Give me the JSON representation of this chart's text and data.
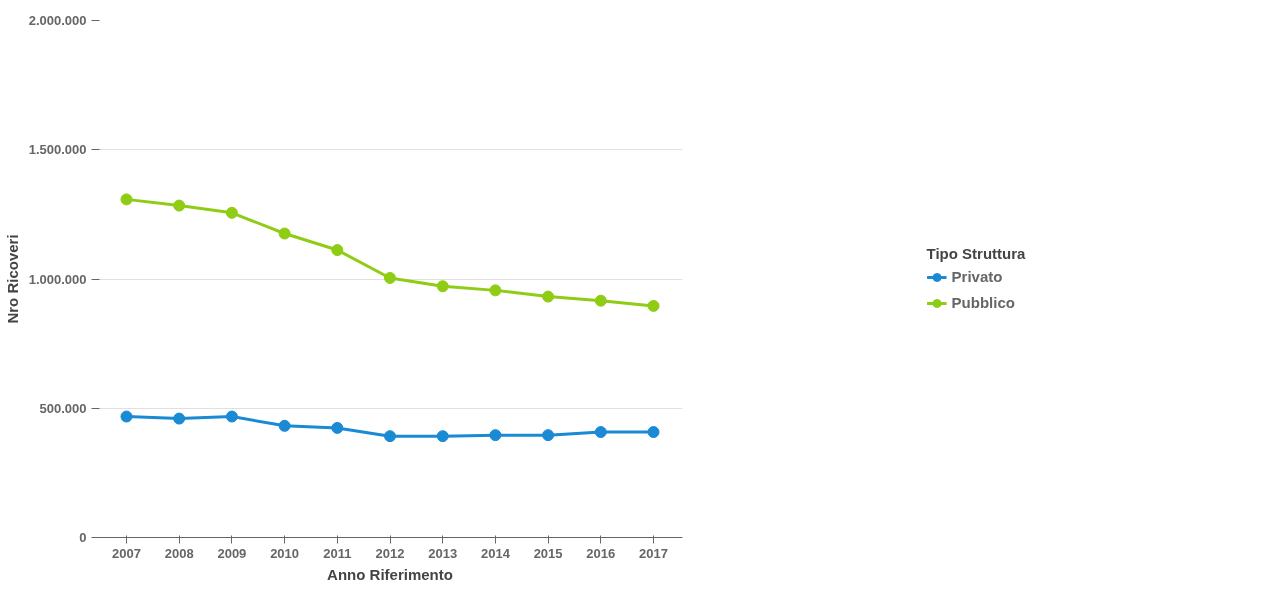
{
  "chart_data": {
    "type": "line",
    "xlabel": "Anno Riferimento",
    "ylabel": "Nro Ricoveri",
    "legend_title": "Tipo Struttura",
    "categories": [
      "2007",
      "2008",
      "2009",
      "2010",
      "2011",
      "2012",
      "2013",
      "2014",
      "2015",
      "2016",
      "2017"
    ],
    "series": [
      {
        "name": "Privato",
        "color": "#1a8ad4",
        "values": [
          468000,
          460000,
          468000,
          432000,
          424000,
          392000,
          392000,
          396000,
          396000,
          408000,
          408000
        ]
      },
      {
        "name": "Pubblico",
        "color": "#8fcc14",
        "values": [
          1308000,
          1284000,
          1256000,
          1176000,
          1112000,
          1004000,
          972000,
          956000,
          932000,
          916000,
          896000
        ]
      }
    ],
    "ylim": [
      0,
      2000000
    ],
    "yticks": [
      0,
      {
        "value": 500000,
        "label": "500.000"
      },
      {
        "value": 1000000,
        "label": "1.000.000"
      },
      {
        "value": 1500000,
        "label": "1.500.000"
      },
      {
        "value": 2000000,
        "label": "2.000.000"
      }
    ],
    "grid": "y",
    "legend": "right",
    "marker": "circle",
    "line_style": "solid"
  }
}
